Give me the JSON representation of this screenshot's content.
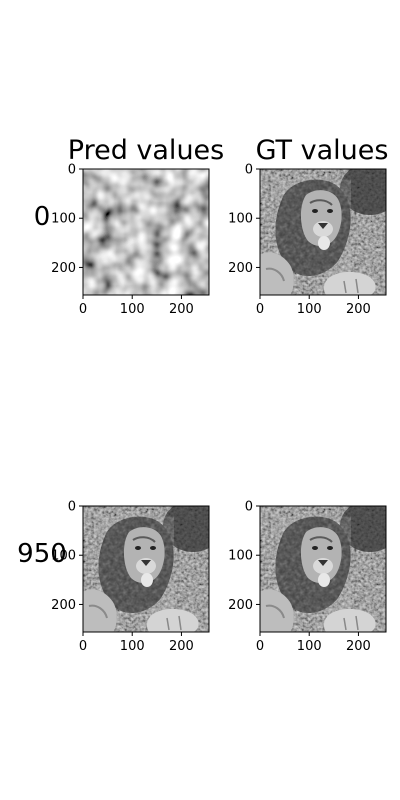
{
  "column_titles": [
    "Pred values",
    "GT values"
  ],
  "row_labels": [
    "0",
    "950"
  ],
  "panels": [
    {
      "row": 0,
      "col": 0,
      "content": "noise"
    },
    {
      "row": 0,
      "col": 1,
      "content": "lion"
    },
    {
      "row": 1,
      "col": 0,
      "content": "lion"
    },
    {
      "row": 1,
      "col": 1,
      "content": "lion"
    }
  ],
  "axis": {
    "x_ticks": [
      "0",
      "100",
      "200"
    ],
    "y_ticks": [
      "0",
      "100",
      "200"
    ],
    "x_tick_values": [
      0,
      100,
      200
    ],
    "y_tick_values": [
      0,
      100,
      200
    ],
    "range": [
      0,
      256
    ]
  },
  "colors": {
    "grey_dark": "#3a3a3a",
    "grey_mid": "#7a7a7a",
    "grey_light": "#c8c8c8"
  }
}
